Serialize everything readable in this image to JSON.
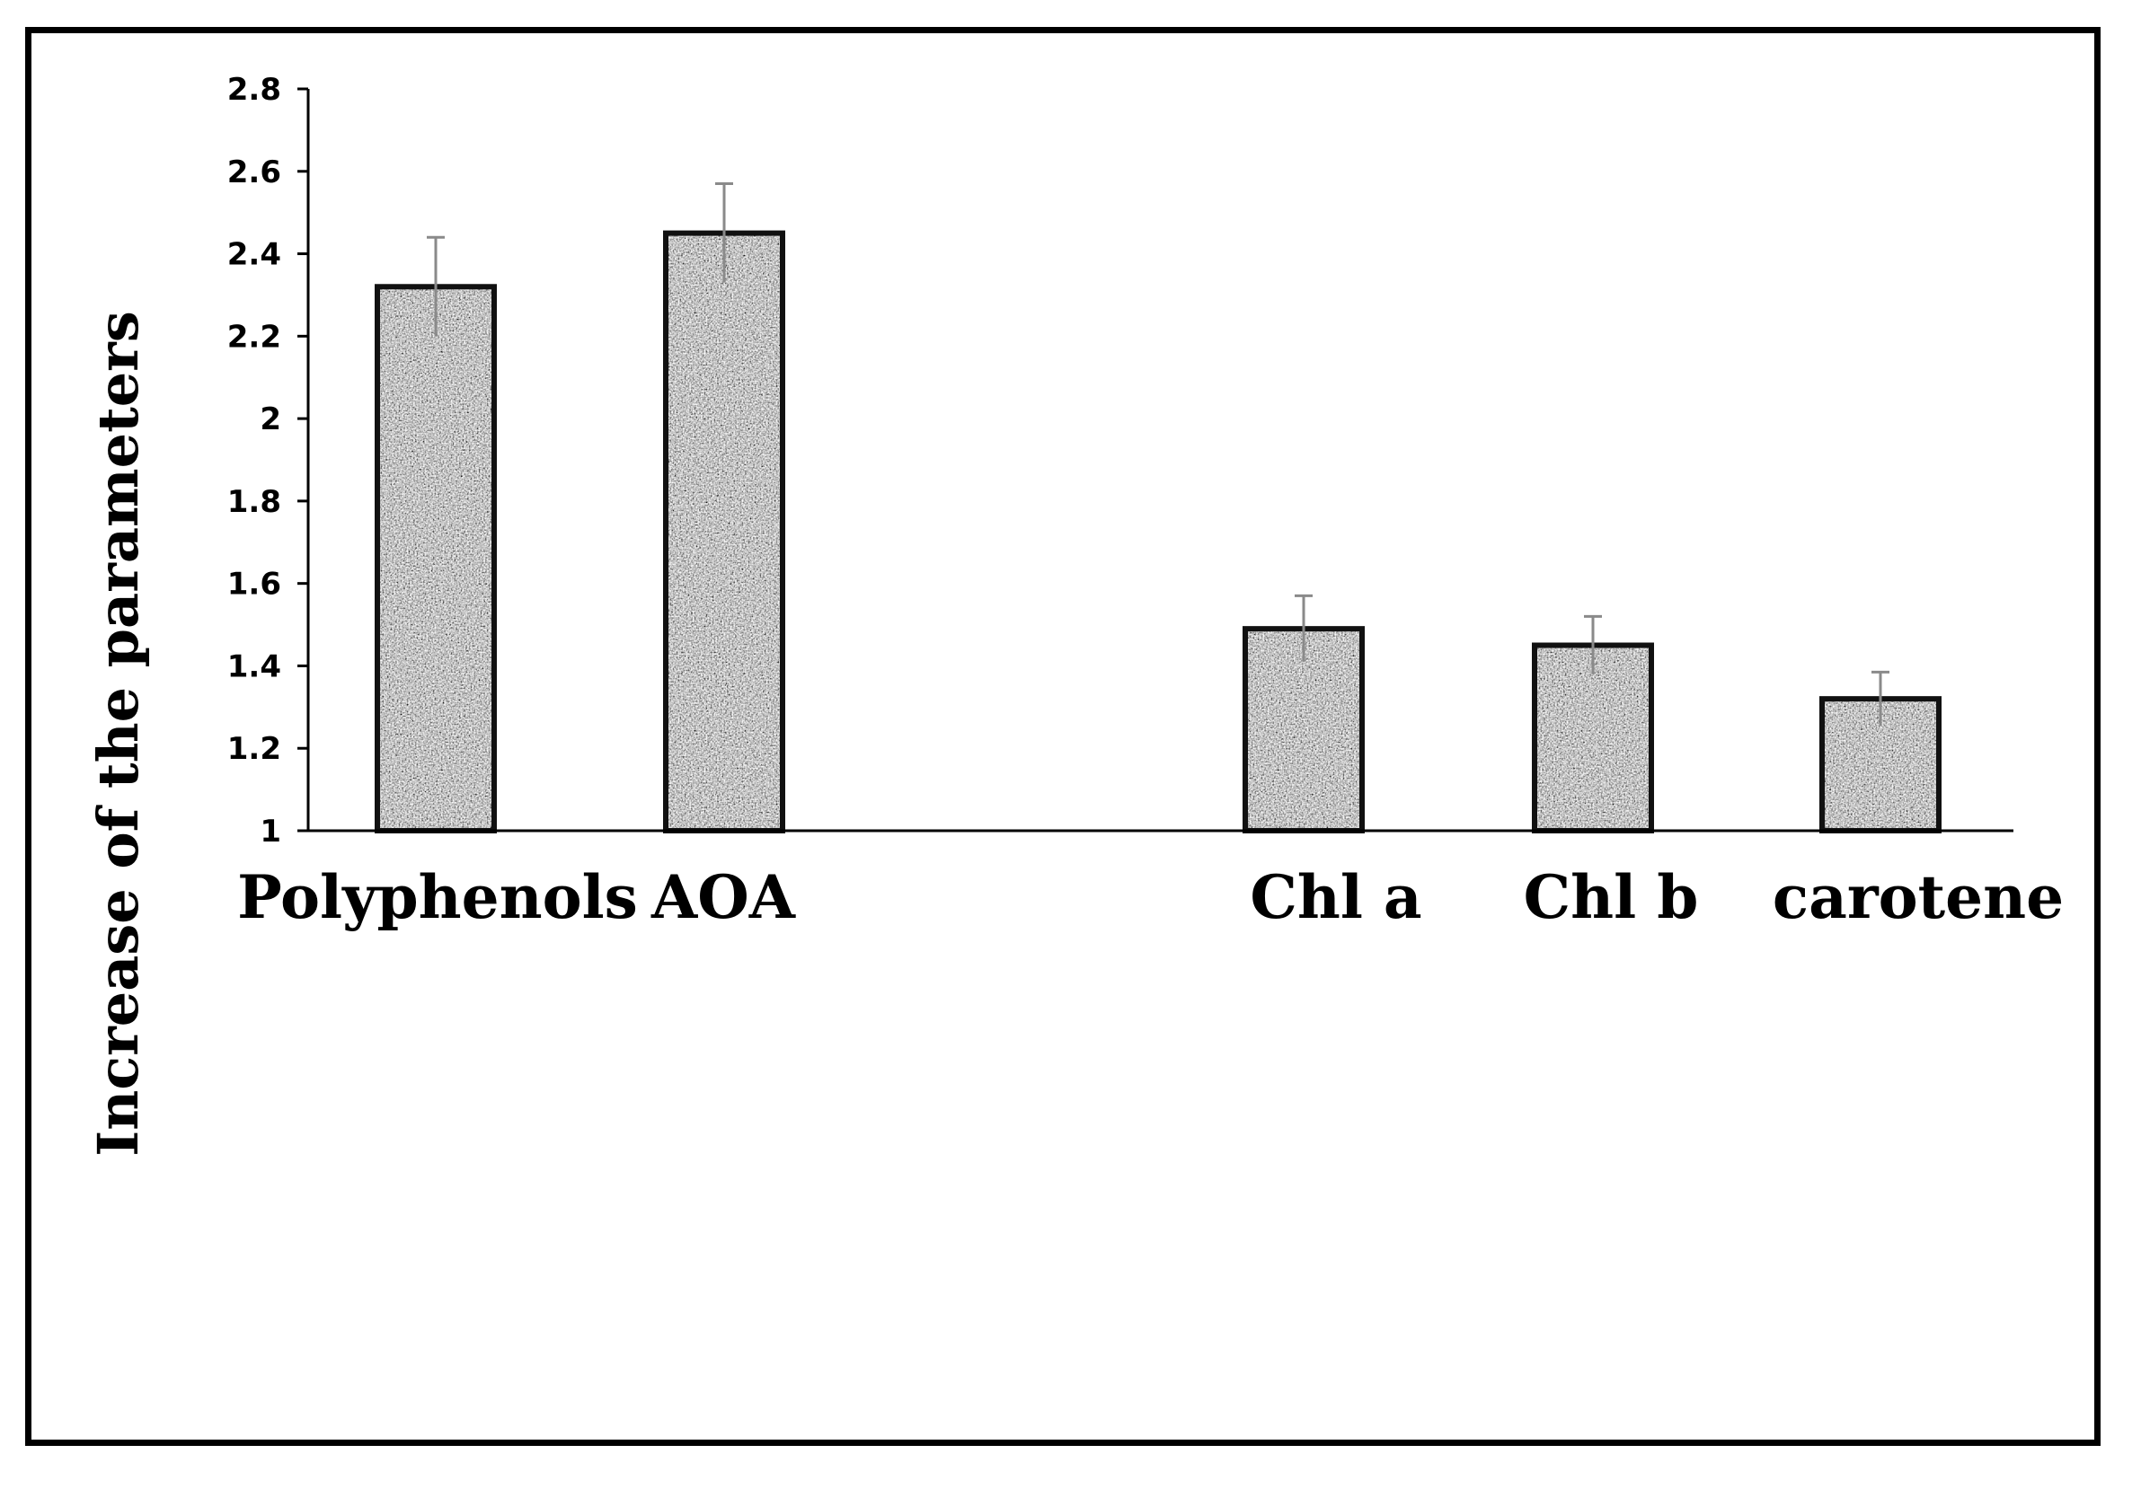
{
  "chart_data": {
    "type": "bar",
    "title": "",
    "xlabel": "",
    "ylabel": "Increase of the parameters",
    "ylim": [
      1,
      2.8
    ],
    "yticks": [
      "1",
      "1.2",
      "1.4",
      "1.6",
      "1.8",
      "2",
      "2.2",
      "2.4",
      "2.6",
      "2.8"
    ],
    "categories": [
      "Polyphenols",
      "AOA",
      "Chl a",
      "Chl b",
      "carotene"
    ],
    "values": [
      2.32,
      2.45,
      1.49,
      1.45,
      1.32
    ],
    "errors": [
      0.12,
      0.12,
      0.08,
      0.07,
      0.065
    ],
    "grid": false,
    "legend": "none",
    "colors": {
      "bar_fill": "#9a9a9a",
      "bar_edge": "#111111",
      "error_bar": "#8a8a8a",
      "axis": "#000000"
    }
  }
}
